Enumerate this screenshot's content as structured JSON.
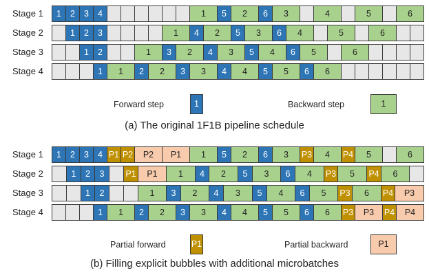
{
  "panel_a": {
    "rows": [
      {
        "label": "Stage 1",
        "cells": [
          [
            "f",
            "1"
          ],
          [
            "f",
            "2"
          ],
          [
            "f",
            "3"
          ],
          [
            "f",
            "4"
          ],
          [
            "e",
            ""
          ],
          [
            "e",
            ""
          ],
          [
            "e",
            ""
          ],
          [
            "e",
            ""
          ],
          [
            "e",
            ""
          ],
          [
            "e",
            ""
          ],
          [
            "b",
            "1"
          ],
          [
            "f",
            "5"
          ],
          [
            "b",
            "2"
          ],
          [
            "f",
            "6"
          ],
          [
            "b",
            "3"
          ],
          [
            "e",
            ""
          ],
          [
            "b",
            "4"
          ],
          [
            "e",
            ""
          ],
          [
            "b",
            "5"
          ],
          [
            "e",
            ""
          ],
          [
            "b",
            "6"
          ]
        ]
      },
      {
        "label": "Stage 2",
        "cells": [
          [
            "e",
            ""
          ],
          [
            "f",
            "1"
          ],
          [
            "f",
            "2"
          ],
          [
            "f",
            "3"
          ],
          [
            "e",
            ""
          ],
          [
            "e",
            ""
          ],
          [
            "e",
            ""
          ],
          [
            "e",
            ""
          ],
          [
            "b",
            "1"
          ],
          [
            "f",
            "4"
          ],
          [
            "b",
            "2"
          ],
          [
            "f",
            "5"
          ],
          [
            "b",
            "3"
          ],
          [
            "f",
            "6"
          ],
          [
            "b",
            "4"
          ],
          [
            "e",
            ""
          ],
          [
            "b",
            "5"
          ],
          [
            "e",
            ""
          ],
          [
            "b",
            "6"
          ],
          [
            "e",
            ""
          ],
          [
            "e",
            ""
          ]
        ]
      },
      {
        "label": "Stage 3",
        "cells": [
          [
            "e",
            ""
          ],
          [
            "e",
            ""
          ],
          [
            "f",
            "1"
          ],
          [
            "f",
            "2"
          ],
          [
            "e",
            ""
          ],
          [
            "e",
            ""
          ],
          [
            "b",
            "1"
          ],
          [
            "f",
            "3"
          ],
          [
            "b",
            "2"
          ],
          [
            "f",
            "4"
          ],
          [
            "b",
            "3"
          ],
          [
            "f",
            "5"
          ],
          [
            "b",
            "4"
          ],
          [
            "f",
            "6"
          ],
          [
            "b",
            "5"
          ],
          [
            "e",
            ""
          ],
          [
            "b",
            "6"
          ],
          [
            "e",
            ""
          ],
          [
            "e",
            ""
          ],
          [
            "e",
            ""
          ],
          [
            "e",
            ""
          ]
        ]
      },
      {
        "label": "Stage 4",
        "cells": [
          [
            "e",
            ""
          ],
          [
            "e",
            ""
          ],
          [
            "e",
            ""
          ],
          [
            "f",
            "1"
          ],
          [
            "b",
            "1"
          ],
          [
            "f",
            "2"
          ],
          [
            "b",
            "2"
          ],
          [
            "f",
            "3"
          ],
          [
            "b",
            "3"
          ],
          [
            "f",
            "4"
          ],
          [
            "b",
            "4"
          ],
          [
            "f",
            "5"
          ],
          [
            "b",
            "5"
          ],
          [
            "f",
            "6"
          ],
          [
            "b",
            "6"
          ],
          [
            "e",
            ""
          ],
          [
            "e",
            ""
          ],
          [
            "e",
            ""
          ],
          [
            "e",
            ""
          ],
          [
            "e",
            ""
          ],
          [
            "e",
            ""
          ]
        ]
      }
    ],
    "legend": {
      "forward_label": "Forward step",
      "forward_value": "1",
      "backward_label": "Backward step",
      "backward_value": "1"
    },
    "caption": "(a) The original 1F1B pipeline schedule"
  },
  "panel_b": {
    "rows": [
      {
        "label": "Stage 1",
        "cells": [
          [
            "f",
            "1"
          ],
          [
            "f",
            "2"
          ],
          [
            "f",
            "3"
          ],
          [
            "f",
            "4"
          ],
          [
            "pf",
            "P1"
          ],
          [
            "pf",
            "P2"
          ],
          [
            "pb",
            "P2"
          ],
          [
            "pb",
            "P1"
          ],
          [
            "b",
            "1"
          ],
          [
            "f",
            "5"
          ],
          [
            "b",
            "2"
          ],
          [
            "f",
            "6"
          ],
          [
            "b",
            "3"
          ],
          [
            "pf",
            "P3"
          ],
          [
            "b",
            "4"
          ],
          [
            "pf",
            "P4"
          ],
          [
            "b",
            "5"
          ],
          [
            "e",
            ""
          ],
          [
            "b",
            "6"
          ]
        ]
      },
      {
        "label": "Stage 2",
        "cells": [
          [
            "e",
            ""
          ],
          [
            "f",
            "1"
          ],
          [
            "f",
            "2"
          ],
          [
            "f",
            "3"
          ],
          [
            "e",
            ""
          ],
          [
            "pf",
            "P1"
          ],
          [
            "pb",
            "P1"
          ],
          [
            "b",
            "1"
          ],
          [
            "f",
            "4"
          ],
          [
            "b",
            "2"
          ],
          [
            "f",
            "5"
          ],
          [
            "b",
            "3"
          ],
          [
            "f",
            "6"
          ],
          [
            "b",
            "4"
          ],
          [
            "pf",
            "P3"
          ],
          [
            "b",
            "5"
          ],
          [
            "pf",
            "P4"
          ],
          [
            "b",
            "6"
          ],
          [
            "e",
            ""
          ]
        ]
      },
      {
        "label": "Stage 3",
        "cells": [
          [
            "e",
            ""
          ],
          [
            "e",
            ""
          ],
          [
            "f",
            "1"
          ],
          [
            "f",
            "2"
          ],
          [
            "e",
            ""
          ],
          [
            "e",
            ""
          ],
          [
            "b",
            "1"
          ],
          [
            "f",
            "3"
          ],
          [
            "b",
            "2"
          ],
          [
            "f",
            "4"
          ],
          [
            "b",
            "3"
          ],
          [
            "f",
            "5"
          ],
          [
            "b",
            "4"
          ],
          [
            "f",
            "6"
          ],
          [
            "b",
            "5"
          ],
          [
            "pf",
            "P3"
          ],
          [
            "b",
            "6"
          ],
          [
            "pf",
            "P4"
          ],
          [
            "pb",
            "P3"
          ]
        ]
      },
      {
        "label": "Stage 4",
        "cells": [
          [
            "e",
            ""
          ],
          [
            "e",
            ""
          ],
          [
            "e",
            ""
          ],
          [
            "f",
            "1"
          ],
          [
            "b",
            "1"
          ],
          [
            "f",
            "2"
          ],
          [
            "b",
            "2"
          ],
          [
            "f",
            "3"
          ],
          [
            "b",
            "3"
          ],
          [
            "f",
            "4"
          ],
          [
            "b",
            "4"
          ],
          [
            "f",
            "5"
          ],
          [
            "b",
            "5"
          ],
          [
            "f",
            "6"
          ],
          [
            "b",
            "6"
          ],
          [
            "pf",
            "P3"
          ],
          [
            "pb",
            "P3"
          ],
          [
            "pf",
            "P4"
          ],
          [
            "pb",
            "P4"
          ]
        ]
      }
    ],
    "legend": {
      "partial_forward_label": "Partial forward",
      "partial_forward_value": "P1",
      "partial_backward_label": "Partial backward",
      "partial_backward_value": "P1"
    },
    "caption": "(b) Filling explicit bubbles with additional microbatches"
  }
}
